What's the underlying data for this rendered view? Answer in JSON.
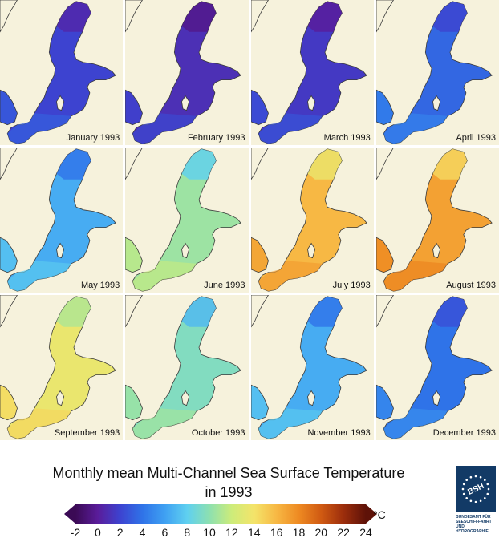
{
  "panels": [
    {
      "label": "January 1993",
      "temp": 2
    },
    {
      "label": "February 1993",
      "temp": 1
    },
    {
      "label": "March 1993",
      "temp": 1.5
    },
    {
      "label": "April 1993",
      "temp": 3.5
    },
    {
      "label": "May 1993",
      "temp": 6.5
    },
    {
      "label": "June 1993",
      "temp": 10.5
    },
    {
      "label": "July 1993",
      "temp": 16
    },
    {
      "label": "August 1993",
      "temp": 17
    },
    {
      "label": "September 1993",
      "temp": 13.5
    },
    {
      "label": "October 1993",
      "temp": 9.5
    },
    {
      "label": "November 1993",
      "temp": 6.5
    },
    {
      "label": "December 1993",
      "temp": 4
    }
  ],
  "title": {
    "line1": "Monthly mean Multi-Channel Sea Surface Temperature",
    "line2": "in 1993"
  },
  "colorbar": {
    "min": -2,
    "max": 24,
    "ticks": [
      "-2",
      "0",
      "2",
      "4",
      "6",
      "8",
      "10",
      "12",
      "14",
      "16",
      "18",
      "20",
      "22",
      "24"
    ],
    "unit": "°C",
    "stops": [
      {
        "t": -2,
        "color": "#3b0a55"
      },
      {
        "t": 0,
        "color": "#5a1c9a"
      },
      {
        "t": 2,
        "color": "#3d43d0"
      },
      {
        "t": 4,
        "color": "#2f73e8"
      },
      {
        "t": 6,
        "color": "#3fa0f2"
      },
      {
        "t": 8,
        "color": "#5fd0f0"
      },
      {
        "t": 10,
        "color": "#8de0b0"
      },
      {
        "t": 12,
        "color": "#cdec7a"
      },
      {
        "t": 14,
        "color": "#f4e46a"
      },
      {
        "t": 16,
        "color": "#f7b844"
      },
      {
        "t": 18,
        "color": "#ee8a22"
      },
      {
        "t": 20,
        "color": "#d05a12"
      },
      {
        "t": 22,
        "color": "#9c2d0c"
      },
      {
        "t": 24,
        "color": "#5e1208"
      }
    ]
  },
  "colors": {
    "land": "#f6f2dc",
    "coast": "#3a3a3a",
    "logo_bg": "#123a66"
  },
  "logo": {
    "mark": "BSH",
    "text": [
      "BUNDESAMT FÜR",
      "SEESCHIFFFAHRT",
      "UND",
      "HYDROGRAPHIE"
    ]
  }
}
